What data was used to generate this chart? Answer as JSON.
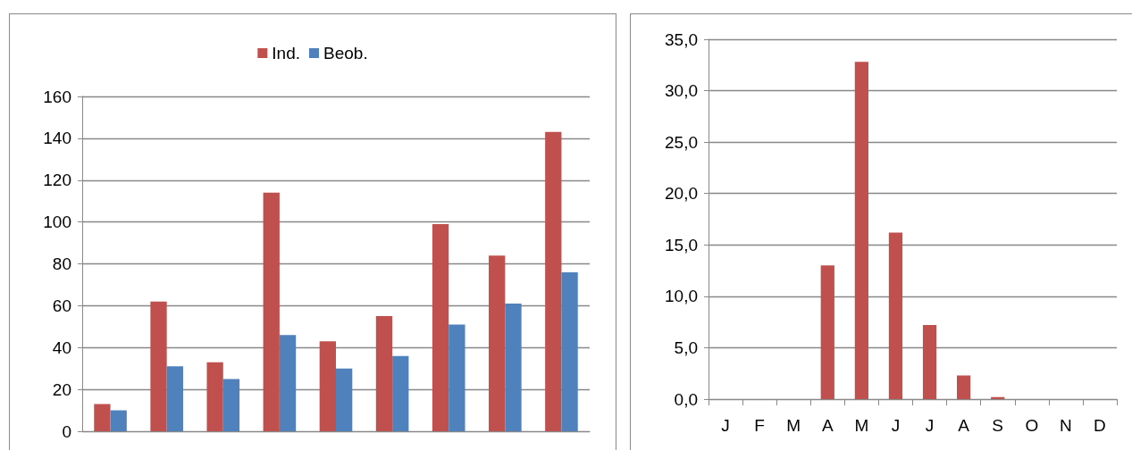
{
  "chart_data": [
    {
      "type": "bar",
      "categories": [
        null,
        null,
        null,
        null,
        null,
        null,
        null,
        null,
        null
      ],
      "series": [
        {
          "name": "Ind.",
          "color": "#c0504d",
          "values": [
            13,
            62,
            33,
            114,
            43,
            55,
            99,
            84,
            143
          ]
        },
        {
          "name": "Beob.",
          "color": "#4f81bd",
          "values": [
            10,
            31,
            25,
            46,
            30,
            36,
            51,
            61,
            76
          ]
        }
      ],
      "ylim": [
        0,
        160
      ],
      "yticks": [
        0,
        20,
        40,
        60,
        80,
        100,
        120,
        140,
        160
      ],
      "grid": "y",
      "legend": "top",
      "tick_labels": "y"
    },
    {
      "type": "bar",
      "categories": [
        "J",
        "F",
        "M",
        "A",
        "M",
        "J",
        "J",
        "A",
        "S",
        "O",
        "N",
        "D"
      ],
      "series": [
        {
          "color": "#c0504d",
          "values": [
            0,
            0,
            0,
            13.0,
            32.8,
            16.2,
            7.2,
            2.3,
            0.2,
            0,
            0,
            0
          ]
        }
      ],
      "ylim": [
        0,
        35
      ],
      "yticks": [
        {
          "value": 0,
          "label": "0,0"
        },
        {
          "value": 5,
          "label": "5,0"
        },
        {
          "value": 10,
          "label": "10,0"
        },
        {
          "value": 15,
          "label": "15,0"
        },
        {
          "value": 20,
          "label": "20,0"
        },
        {
          "value": 25,
          "label": "25,0"
        },
        {
          "value": 30,
          "label": "30,0"
        },
        {
          "value": 35,
          "label": "35,0"
        }
      ],
      "grid": "y"
    }
  ]
}
